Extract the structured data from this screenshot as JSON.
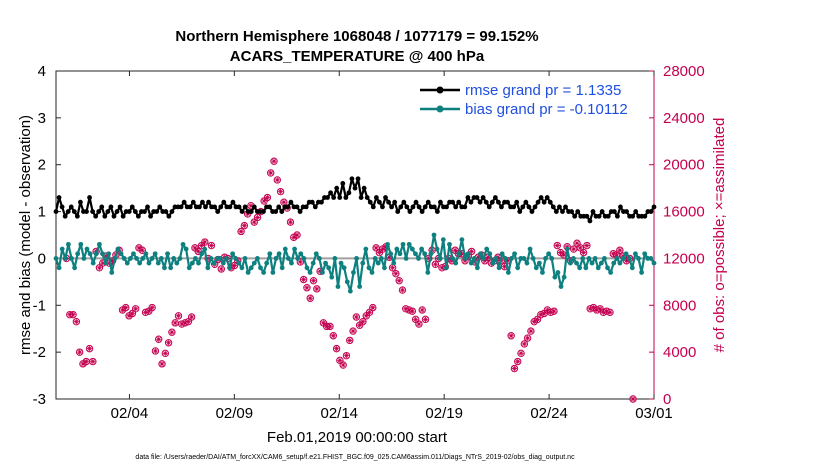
{
  "chart_data": {
    "type": "line",
    "title": "Northern Hemisphere 1068048 / 1077179 = 99.152%",
    "subtitle": "ACARS_TEMPERATURE @ 400 hPa",
    "xlabel": "Feb.01,2019 00:00:00 start",
    "ylabel": "rmse and bias (model - observation)",
    "ylabel_right": "# of obs: o=possible; ×=assimilated",
    "ylim": [
      -3,
      4
    ],
    "ylim_right": [
      0,
      28000
    ],
    "yticks": [
      "-3",
      "-2",
      "-1",
      "0",
      "1",
      "2",
      "3",
      "4"
    ],
    "yticks_right": [
      "0",
      "4000",
      "8000",
      "12000",
      "16000",
      "20000",
      "24000",
      "28000"
    ],
    "xlim": [
      0.5,
      29.0
    ],
    "xticks": [
      {
        "day": 4,
        "label": "02/04"
      },
      {
        "day": 9,
        "label": "02/09"
      },
      {
        "day": 14,
        "label": "02/14"
      },
      {
        "day": 19,
        "label": "02/19"
      },
      {
        "day": 24,
        "label": "02/24"
      },
      {
        "day": 29,
        "label": "03/01"
      }
    ],
    "zero_line": 0,
    "series": [
      {
        "name": "rmse",
        "legend": "rmse grand pr = 1.1335",
        "color": "#000000",
        "values": [
          1.0,
          1.3,
          1.1,
          0.9,
          1.0,
          1.1,
          1.0,
          0.9,
          1.2,
          1.0,
          1.0,
          1.3,
          1.0,
          0.9,
          1.0,
          1.1,
          0.9,
          1.0,
          1.1,
          0.9,
          1.0,
          1.1,
          0.9,
          1.0,
          1.0,
          1.1,
          1.0,
          0.9,
          1.0,
          1.0,
          1.1,
          0.9,
          1.0,
          1.0,
          1.1,
          1.0,
          1.0,
          0.9,
          1.0,
          1.1,
          1.1,
          1.1,
          1.2,
          1.1,
          1.1,
          1.2,
          1.1,
          1.1,
          1.2,
          1.1,
          1.2,
          1.1,
          1.1,
          1.0,
          1.1,
          1.2,
          1.1,
          1.1,
          1.2,
          1.1,
          1.1,
          1.0,
          1.1,
          1.0,
          1.0,
          1.1,
          1.0,
          1.0,
          1.0,
          1.1,
          1.1,
          1.0,
          1.0,
          1.1,
          1.0,
          1.1,
          1.1,
          1.2,
          1.1,
          1.1,
          1.0,
          1.1,
          1.1,
          1.2,
          1.2,
          1.1,
          1.2,
          1.2,
          1.3,
          1.3,
          1.4,
          1.3,
          1.5,
          1.3,
          1.6,
          1.3,
          1.4,
          1.7,
          1.5,
          1.7,
          1.3,
          1.5,
          1.3,
          1.2,
          1.1,
          1.3,
          1.2,
          1.1,
          1.3,
          1.2,
          1.1,
          1.2,
          1.0,
          1.1,
          1.2,
          1.1,
          1.0,
          1.1,
          1.2,
          1.1,
          1.0,
          1.1,
          1.2,
          1.1,
          1.1,
          1.0,
          1.2,
          1.1,
          1.1,
          1.2,
          1.2,
          1.1,
          1.2,
          1.1,
          1.1,
          1.3,
          1.2,
          1.3,
          1.3,
          1.2,
          1.3,
          1.2,
          1.1,
          1.2,
          1.3,
          1.2,
          1.1,
          1.2,
          1.2,
          1.1,
          1.1,
          1.2,
          1.0,
          1.1,
          1.2,
          1.1,
          1.0,
          1.1,
          1.2,
          1.3,
          1.2,
          1.3,
          1.2,
          1.1,
          1.0,
          1.1,
          1.0,
          1.1,
          1.0,
          1.0,
          0.9,
          1.0,
          0.9,
          0.9,
          0.9,
          0.8,
          1.0,
          0.9,
          0.9,
          1.0,
          0.9,
          0.9,
          1.0,
          1.0,
          0.9,
          1.1,
          1.0,
          1.0,
          0.9,
          0.9,
          1.0,
          0.9,
          0.9,
          0.9,
          1.0,
          1.0,
          1.1
        ]
      },
      {
        "name": "bias",
        "legend": "bias grand pr = -0.10112",
        "color": "#0f8080",
        "values": [
          0.0,
          -0.2,
          0.2,
          0.0,
          0.3,
          0.0,
          -0.2,
          0.1,
          0.3,
          0.0,
          0.2,
          0.1,
          -0.1,
          0.1,
          0.3,
          0.1,
          -0.1,
          0.1,
          -0.3,
          0.0,
          0.2,
          0.1,
          0.0,
          -0.1,
          0.0,
          0.1,
          0.0,
          -0.1,
          0.0,
          0.1,
          -0.1,
          0.0,
          0.1,
          -0.1,
          0.0,
          -0.2,
          0.1,
          -0.2,
          0.0,
          -0.1,
          0.0,
          0.3,
          0.2,
          -0.2,
          -0.1,
          0.0,
          -0.1,
          0.1,
          0.2,
          -0.2,
          0.0,
          -0.1,
          0.0,
          0.0,
          -0.1,
          0.0,
          -0.2,
          0.1,
          0.0,
          -0.1,
          -0.2,
          0.0,
          -0.3,
          -0.2,
          -0.1,
          0.0,
          -0.2,
          -0.3,
          -0.1,
          0.1,
          -0.3,
          0.0,
          0.1,
          -0.2,
          0.2,
          0.0,
          -0.1,
          0.2,
          0.0,
          0.1,
          0.0,
          -0.2,
          -0.3,
          -0.1,
          0.1,
          0.0,
          -0.3,
          -0.1,
          -0.2,
          -0.4,
          0.0,
          -0.6,
          -0.1,
          -0.2,
          -0.5,
          -0.7,
          -0.3,
          0.0,
          -0.6,
          -0.1,
          0.2,
          -0.2,
          -0.3,
          0.0,
          -0.1,
          0.0,
          -0.2,
          0.3,
          0.1,
          -0.1,
          0.2,
          0.1,
          0.3,
          0.0,
          0.3,
          0.2,
          0.1,
          0.0,
          0.2,
          0.1,
          -0.3,
          0.1,
          0.5,
          0.2,
          0.0,
          0.4,
          -0.2,
          0.3,
          0.0,
          -0.1,
          0.1,
          0.4,
          0.0,
          0.1,
          -0.1,
          0.0,
          -0.2,
          0.1,
          0.0,
          0.2,
          0.1,
          -0.1,
          0.0,
          -0.2,
          0.1,
          0.0,
          -0.3,
          0.0,
          0.1,
          -0.2,
          0.0,
          0.0,
          -0.1,
          0.2,
          0.0,
          -0.2,
          -0.1,
          -0.3,
          0.0,
          0.1,
          0.0,
          -0.4,
          -0.3,
          -0.6,
          -0.4,
          0.2,
          -0.1,
          0.0,
          -0.1,
          -0.2,
          0.0,
          -0.2,
          0.0,
          -0.1,
          0.0,
          -0.2,
          -0.1,
          0.0,
          -0.2,
          -0.3,
          -0.1,
          0.0,
          -0.1,
          0.0,
          0.1,
          0.0,
          -0.2,
          0.1,
          0.0,
          -0.3,
          0.1,
          0.0,
          0.0,
          -0.1
        ]
      },
      {
        "name": "obs_possible",
        "color": "#c4004f",
        "values": [
          12000,
          7200,
          7200,
          6600,
          4000,
          3000,
          3200,
          4300,
          3200,
          12600,
          11200,
          11600,
          12200,
          11600,
          11800,
          12300,
          12700,
          7600,
          7800,
          7100,
          7300,
          7700,
          12900,
          12700,
          7400,
          7500,
          7800,
          4100,
          5100,
          3000,
          3900,
          4800,
          5700,
          6500,
          7100,
          6400,
          6500,
          6600,
          7000,
          12900,
          12600,
          13100,
          13400,
          12000,
          13100,
          11500,
          11900,
          11100,
          12100,
          12000,
          11200,
          11400,
          11800,
          14300,
          14800,
          15800,
          16500,
          15100,
          15500,
          16000,
          16900,
          17200,
          19300,
          20300,
          18700,
          17700,
          16800,
          16300,
          15100,
          13800,
          14000,
          11700,
          10200,
          9500,
          8600,
          10100,
          9400,
          10900,
          6500,
          6200,
          6200,
          5400,
          4300,
          3300,
          2900,
          3700,
          5000,
          5800,
          7000,
          6300,
          6600,
          7100,
          7400,
          7800,
          12900,
          12500,
          12800,
          13000,
          12100,
          11200,
          10700,
          10100,
          9300,
          7700,
          7600,
          7500,
          6800,
          6400,
          7600,
          6800,
          12000,
          12700,
          11500,
          12000,
          11200,
          11300,
          12000,
          11800,
          12700,
          12400,
          12400,
          11800,
          12200,
          12600,
          11700,
          12100,
          12300,
          11800,
          12100,
          11600,
          11800,
          12100,
          11800,
          11300,
          11800,
          5400,
          2600,
          3200,
          3900,
          4700,
          5200,
          5800,
          6600,
          6800,
          7200,
          7300,
          7600,
          7400,
          7500,
          13100,
          12500,
          12300,
          13000,
          11800,
          12800,
          13300,
          12900,
          12500,
          13100,
          7700,
          7800,
          7600,
          7700,
          7400,
          7500,
          7400,
          12400,
          12300,
          12700,
          12200,
          11800,
          12000,
          0
        ]
      }
    ],
    "obs_range": [
      1,
      28
    ]
  },
  "footer": "data file: /Users/raeder/DAI/ATM_forcXX/CAM6_setup/f.e21.FHIST_BGC.f09_025.CAM6assim.011/Diags_NTrS_2019-02/obs_diag_output.nc"
}
